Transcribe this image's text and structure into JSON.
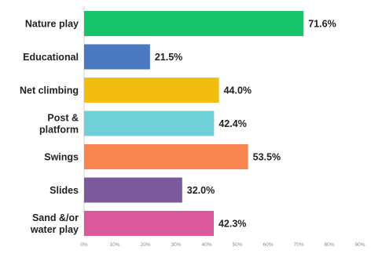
{
  "chart_data": {
    "type": "bar",
    "orientation": "horizontal",
    "categories": [
      [
        "Nature play"
      ],
      [
        "Educational"
      ],
      [
        "Net climbing"
      ],
      [
        "Post &",
        "platform"
      ],
      [
        "Swings"
      ],
      [
        "Slides"
      ],
      [
        "Sand &/or",
        "water play"
      ]
    ],
    "values": [
      71.6,
      21.5,
      44.0,
      42.4,
      53.5,
      32.0,
      42.3
    ],
    "value_labels": [
      "71.6%",
      "21.5%",
      "44.0%",
      "42.4%",
      "53.5%",
      "32.0%",
      "42.3%"
    ],
    "colors": [
      "#17c36b",
      "#4a79c2",
      "#f2bd0f",
      "#6fd0d8",
      "#f8854f",
      "#7b5a9c",
      "#d9599a"
    ],
    "xlim": [
      0,
      90
    ],
    "x_ticks": [
      "0%",
      "10%",
      "20%",
      "30%",
      "40%",
      "50%",
      "60%",
      "70%",
      "80%",
      "90%"
    ],
    "grid": false,
    "legend": "none"
  }
}
